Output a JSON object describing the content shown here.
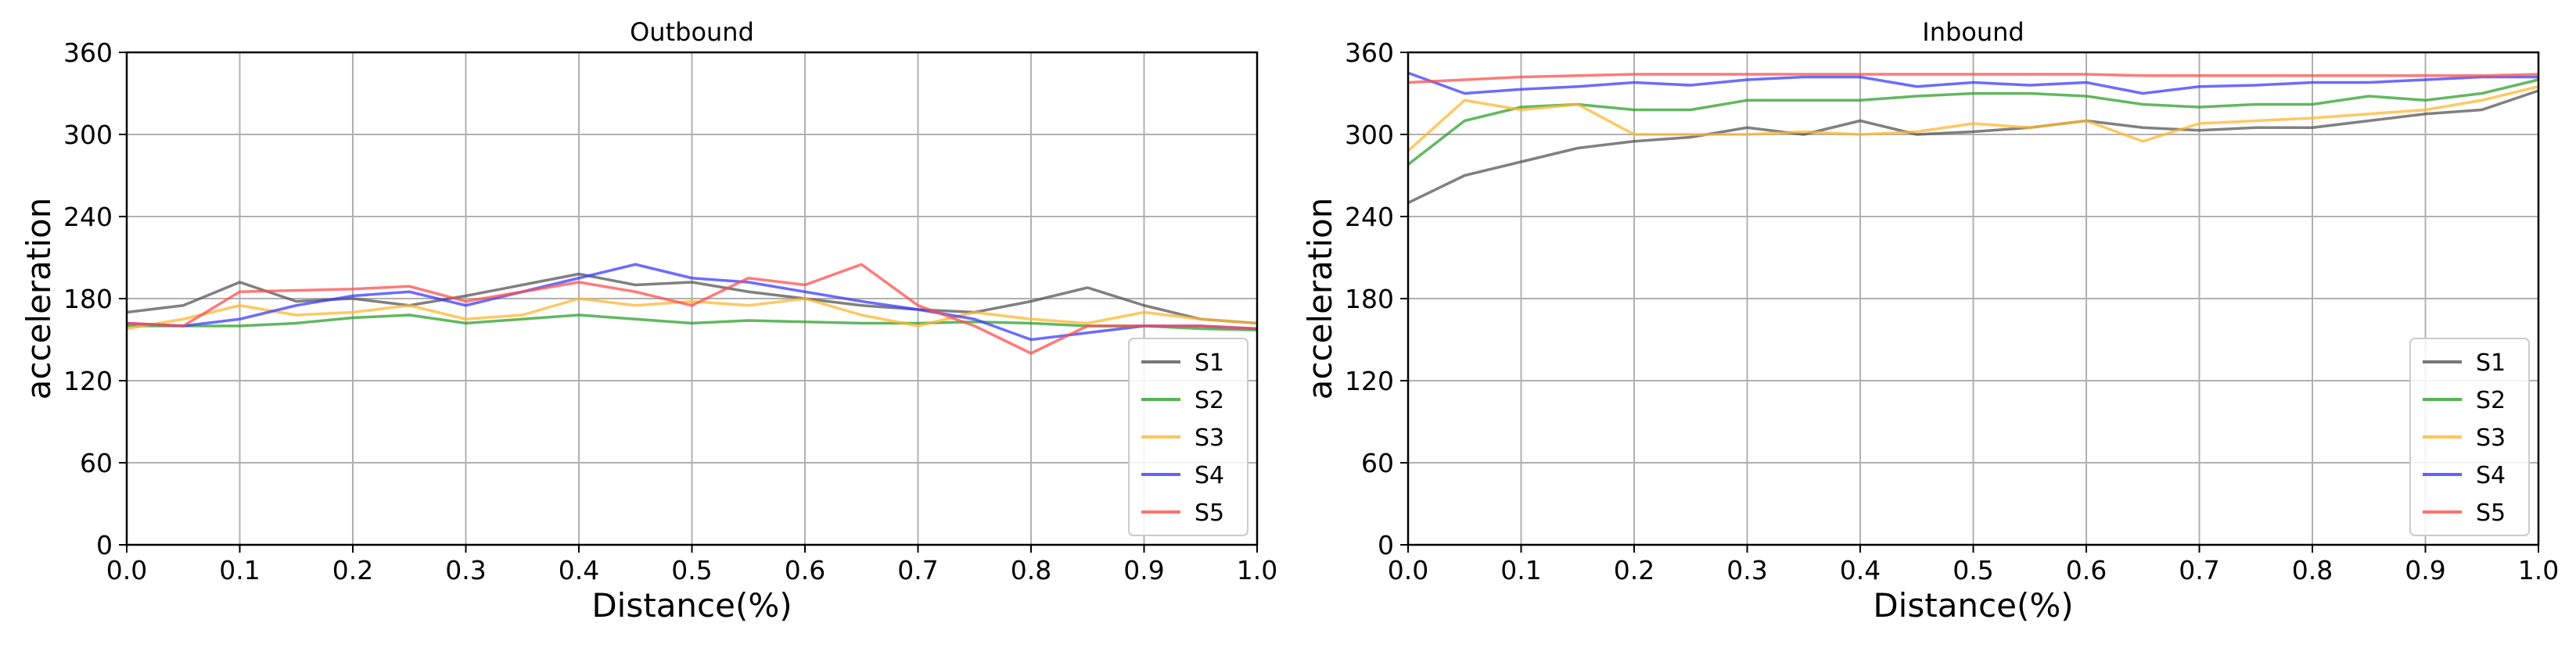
{
  "chart_data": [
    {
      "type": "line",
      "title": "Outbound",
      "xlabel": "Distance(%)",
      "ylabel": "acceleration",
      "xlim": [
        0,
        1
      ],
      "ylim": [
        0,
        360
      ],
      "xticks": [
        "0.0",
        "0.1",
        "0.2",
        "0.3",
        "0.4",
        "0.5",
        "0.6",
        "0.7",
        "0.8",
        "0.9",
        "1.0"
      ],
      "yticks": [
        "0",
        "60",
        "120",
        "180",
        "240",
        "300",
        "360"
      ],
      "grid": true,
      "legend_position": "lower-right",
      "x": [
        0,
        0.05,
        0.1,
        0.15,
        0.2,
        0.25,
        0.3,
        0.35,
        0.4,
        0.45,
        0.5,
        0.55,
        0.6,
        0.65,
        0.7,
        0.75,
        0.8,
        0.85,
        0.9,
        0.95,
        1.0
      ],
      "series": [
        {
          "name": "S1",
          "color": "#555555",
          "values": [
            170,
            175,
            192,
            178,
            180,
            175,
            182,
            190,
            198,
            190,
            192,
            185,
            180,
            175,
            172,
            170,
            178,
            188,
            175,
            165,
            162
          ]
        },
        {
          "name": "S2",
          "color": "#2ca02c",
          "values": [
            160,
            160,
            160,
            162,
            166,
            168,
            162,
            165,
            168,
            165,
            162,
            164,
            163,
            162,
            162,
            163,
            162,
            160,
            160,
            158,
            157
          ]
        },
        {
          "name": "S3",
          "color": "#ffb52e",
          "values": [
            158,
            165,
            175,
            168,
            170,
            175,
            165,
            168,
            180,
            175,
            178,
            175,
            180,
            168,
            160,
            170,
            165,
            162,
            170,
            165,
            162
          ]
        },
        {
          "name": "S4",
          "color": "#3b3bff",
          "values": [
            162,
            160,
            165,
            175,
            182,
            185,
            175,
            185,
            195,
            205,
            195,
            192,
            185,
            178,
            172,
            165,
            150,
            155,
            160,
            160,
            158
          ]
        },
        {
          "name": "S5",
          "color": "#ff4d4d",
          "values": [
            162,
            160,
            185,
            186,
            187,
            189,
            178,
            185,
            192,
            185,
            175,
            195,
            190,
            205,
            175,
            160,
            140,
            160,
            160,
            160,
            158
          ]
        }
      ]
    },
    {
      "type": "line",
      "title": "Inbound",
      "xlabel": "Distance(%)",
      "ylabel": "acceleration",
      "xlim": [
        0,
        1
      ],
      "ylim": [
        0,
        360
      ],
      "xticks": [
        "0.0",
        "0.1",
        "0.2",
        "0.3",
        "0.4",
        "0.5",
        "0.6",
        "0.7",
        "0.8",
        "0.9",
        "1.0"
      ],
      "yticks": [
        "0",
        "60",
        "120",
        "180",
        "240",
        "300",
        "360"
      ],
      "grid": true,
      "legend_position": "lower-right",
      "x": [
        0,
        0.05,
        0.1,
        0.15,
        0.2,
        0.25,
        0.3,
        0.35,
        0.4,
        0.45,
        0.5,
        0.55,
        0.6,
        0.65,
        0.7,
        0.75,
        0.8,
        0.85,
        0.9,
        0.95,
        1.0
      ],
      "series": [
        {
          "name": "S1",
          "color": "#555555",
          "values": [
            250,
            270,
            280,
            290,
            295,
            298,
            305,
            300,
            310,
            300,
            302,
            305,
            310,
            305,
            303,
            305,
            305,
            310,
            315,
            318,
            332
          ]
        },
        {
          "name": "S2",
          "color": "#2ca02c",
          "values": [
            278,
            310,
            320,
            322,
            318,
            318,
            325,
            325,
            325,
            328,
            330,
            330,
            328,
            322,
            320,
            322,
            322,
            328,
            325,
            330,
            340
          ]
        },
        {
          "name": "S3",
          "color": "#ffb52e",
          "values": [
            288,
            325,
            318,
            322,
            300,
            300,
            300,
            302,
            300,
            302,
            308,
            305,
            310,
            295,
            308,
            310,
            312,
            315,
            318,
            325,
            335
          ]
        },
        {
          "name": "S4",
          "color": "#3b3bff",
          "values": [
            345,
            330,
            333,
            335,
            338,
            336,
            340,
            342,
            342,
            335,
            338,
            336,
            338,
            330,
            335,
            336,
            338,
            338,
            340,
            342,
            342
          ]
        },
        {
          "name": "S5",
          "color": "#ff4d4d",
          "values": [
            338,
            340,
            342,
            343,
            344,
            344,
            344,
            344,
            344,
            344,
            344,
            344,
            344,
            343,
            343,
            343,
            343,
            343,
            343,
            343,
            344
          ]
        }
      ]
    }
  ]
}
